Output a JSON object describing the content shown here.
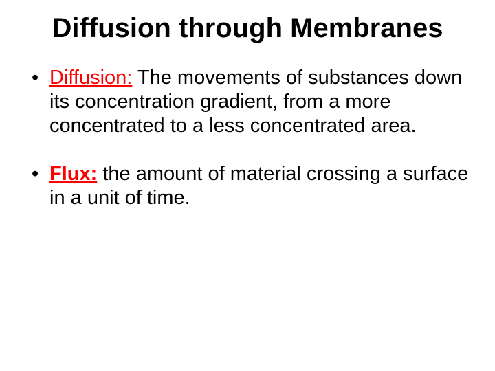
{
  "slide": {
    "title": "Diffusion through Membranes",
    "bullets": [
      {
        "term": "Diffusion:",
        "term_style": "red-underline",
        "body": " The movements of substances down its concentration gradient, from a more concentrated to a less concentrated area."
      },
      {
        "term": "Flux:",
        "term_style": "red-bold-underline",
        "body": " the amount of material crossing a surface in a unit of time."
      }
    ],
    "colors": {
      "background": "#ffffff",
      "text": "#000000",
      "accent": "#ff0000"
    },
    "typography": {
      "title_fontsize": 40,
      "body_fontsize": 29,
      "font_family": "Arial"
    }
  }
}
